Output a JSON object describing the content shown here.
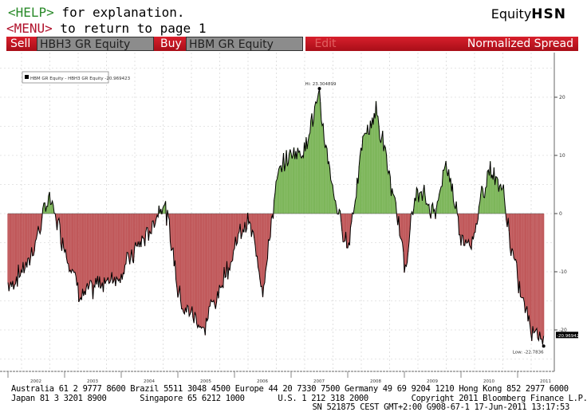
{
  "header": {
    "help_tag": "<HELP>",
    "help_text": " for explanation.",
    "menu_tag": "<MENU>",
    "menu_text": " to return to page 1",
    "brand_prefix": "Equity",
    "brand_code": "HSN"
  },
  "toolbar": {
    "sell_label": "Sell",
    "sell_ticker": "HBH3 GR Equity",
    "buy_label": "Buy",
    "buy_ticker": "HBM GR Equity",
    "edit_label": "Edit",
    "view_title": "Normalized Spread"
  },
  "colors": {
    "positive": "#7db65a",
    "negative": "#c0585a",
    "bar": "#c8141e"
  },
  "chart_data": {
    "type": "area",
    "title": "Normalized Spread",
    "legend": "HBM GR Equity - HBH3 GR Equity -20.969423",
    "legend_placement": "top-left",
    "hi_label": "Hi: 23.304899",
    "low_label": "Low: -22.7836",
    "last_value_label": "-20.969423",
    "ylim": [
      -27,
      31
    ],
    "yticks": [
      20,
      10,
      0,
      -10,
      -20
    ],
    "ytick_labels": [
      "20",
      "10",
      "0",
      "-10",
      "-20"
    ],
    "xlim": [
      2002.0,
      2011.62
    ],
    "xtick_labels": [
      "2002",
      "2003",
      "2004",
      "2005",
      "2006",
      "2007",
      "2008",
      "2009",
      "2010",
      "2011"
    ],
    "grid": true,
    "x": [
      2002.0,
      2002.25,
      2002.5,
      2002.75,
      2003.0,
      2003.25,
      2003.5,
      2003.75,
      2004.0,
      2004.25,
      2004.5,
      2004.75,
      2005.0,
      2005.25,
      2005.5,
      2005.75,
      2006.0,
      2006.25,
      2006.5,
      2006.75,
      2007.0,
      2007.25,
      2007.5,
      2007.75,
      2008.0,
      2008.25,
      2008.5,
      2008.75,
      2009.0,
      2009.25,
      2009.5,
      2009.75,
      2010.0,
      2010.25,
      2010.5,
      2010.75,
      2011.0,
      2011.25,
      2011.46
    ],
    "values": [
      -12,
      -10,
      -4,
      3,
      -5,
      -12,
      -14,
      -11,
      -10,
      -6,
      -3,
      3,
      -12,
      -17,
      -19,
      -12,
      -5,
      -2,
      -12,
      6,
      10,
      12,
      20,
      2,
      -6,
      12,
      18,
      6,
      -8,
      4,
      0,
      8,
      -5,
      -3,
      8,
      2,
      -12,
      -18,
      -21
    ]
  },
  "footer": {
    "line1": "Australia 61 2 9777 8600 Brazil 5511 3048 4500 Europe 44 20 7330 7500 Germany 49 69 9204 1210 Hong Kong 852 2977 6000",
    "line2": "Japan 81 3 3201 8900       Singapore 65 6212 1000       U.S. 1 212 318 2000         Copyright 2011 Bloomberg Finance L.P.",
    "line3": "SN 521875 CEST GMT+2:00 G908-67-1 17-Jun-2011 13:17:53"
  }
}
